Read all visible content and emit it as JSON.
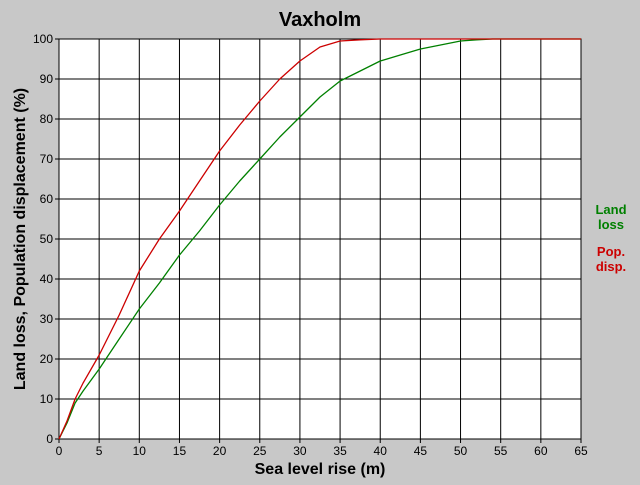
{
  "chart_data": {
    "type": "line",
    "title": "Vaxholm",
    "xlabel": "Sea level rise (m)",
    "ylabel": "Land loss, Population displacement (%)",
    "xlim": [
      0,
      65
    ],
    "ylim": [
      0,
      100
    ],
    "x_ticks": [
      "0",
      "5",
      "10",
      "15",
      "20",
      "25",
      "30",
      "35",
      "40",
      "45",
      "50",
      "55",
      "60",
      "65"
    ],
    "y_ticks": [
      "0",
      "10",
      "20",
      "30",
      "40",
      "50",
      "60",
      "70",
      "80",
      "90",
      "100"
    ],
    "grid": true,
    "legend_placement": "right",
    "series": [
      {
        "name": "Land loss",
        "legend_lines": [
          "Land",
          "loss"
        ],
        "color": "#008000",
        "x": [
          0,
          1,
          2,
          3,
          5,
          7.5,
          10,
          12.5,
          15,
          17.5,
          20,
          22.5,
          25,
          27.5,
          30,
          32.5,
          35,
          37.5,
          40,
          42.5,
          45,
          47.5,
          50,
          52,
          54,
          65
        ],
        "y": [
          0,
          4,
          9,
          12,
          17.5,
          25,
          32.5,
          39,
          46,
          52,
          58.5,
          64.5,
          70,
          75.5,
          80.5,
          85.5,
          89.5,
          92,
          94.5,
          96,
          97.5,
          98.5,
          99.5,
          99.8,
          100,
          100
        ]
      },
      {
        "name": "Pop. disp.",
        "legend_lines": [
          "Pop.",
          "disp."
        ],
        "color": "#cc0000",
        "x": [
          0,
          1,
          2,
          3,
          5,
          7.5,
          10,
          12.5,
          15,
          17.5,
          20,
          22.5,
          25,
          27.5,
          30,
          32.5,
          35,
          37.5,
          40,
          65
        ],
        "y": [
          0,
          4.5,
          10,
          14,
          21,
          31,
          42,
          50,
          57,
          64.5,
          72,
          78.5,
          84.5,
          90,
          94.5,
          98,
          99.5,
          99.8,
          100,
          100
        ]
      }
    ]
  }
}
